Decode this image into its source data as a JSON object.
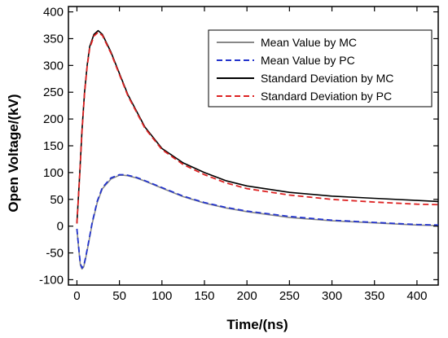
{
  "chart_data": {
    "type": "line",
    "title": "",
    "xlabel": "Time/(ns)",
    "ylabel": "Open Voltage/(kV)",
    "xlim": [
      -10,
      425
    ],
    "ylim": [
      -110,
      410
    ],
    "xticks": [
      0,
      50,
      100,
      150,
      200,
      250,
      300,
      350,
      400
    ],
    "yticks": [
      -100,
      -50,
      0,
      50,
      100,
      150,
      200,
      250,
      300,
      350,
      400
    ],
    "grid": false,
    "legend_position": "top-right",
    "series": [
      {
        "name": "Mean Value by MC",
        "color": "#888888",
        "dash": "solid",
        "x": [
          0,
          2,
          4,
          6,
          8,
          10,
          14,
          18,
          24,
          30,
          40,
          50,
          55,
          60,
          70,
          80,
          100,
          125,
          150,
          175,
          200,
          250,
          300,
          350,
          400,
          425
        ],
        "y": [
          -5,
          -40,
          -72,
          -80,
          -76,
          -62,
          -30,
          5,
          45,
          70,
          88,
          95,
          95,
          94,
          90,
          84,
          71,
          55,
          43,
          34,
          27,
          16,
          10,
          6,
          2,
          1
        ]
      },
      {
        "name": "Mean Value by PC",
        "color": "#2233cc",
        "dash": "dashed",
        "x": [
          0,
          2,
          4,
          6,
          8,
          10,
          14,
          18,
          24,
          30,
          40,
          50,
          55,
          60,
          70,
          80,
          100,
          125,
          150,
          175,
          200,
          250,
          300,
          350,
          400,
          425
        ],
        "y": [
          -5,
          -38,
          -70,
          -78,
          -74,
          -60,
          -28,
          7,
          47,
          72,
          90,
          96,
          96,
          95,
          91,
          85,
          72,
          56,
          44,
          35,
          28,
          18,
          11,
          7,
          3,
          2
        ]
      },
      {
        "name": "Standard Deviation by MC",
        "color": "#000000",
        "dash": "solid",
        "x": [
          0,
          3,
          6,
          9,
          12,
          15,
          20,
          25,
          30,
          40,
          50,
          60,
          80,
          100,
          125,
          150,
          175,
          200,
          250,
          300,
          350,
          400,
          425
        ],
        "y": [
          5,
          90,
          180,
          250,
          300,
          335,
          358,
          365,
          358,
          325,
          285,
          245,
          185,
          145,
          118,
          100,
          85,
          75,
          63,
          56,
          52,
          48,
          46
        ]
      },
      {
        "name": "Standard Deviation by PC",
        "color": "#dd2222",
        "dash": "dashed",
        "x": [
          0,
          3,
          6,
          9,
          12,
          15,
          20,
          25,
          30,
          40,
          50,
          60,
          80,
          100,
          125,
          150,
          175,
          200,
          250,
          300,
          350,
          400,
          425
        ],
        "y": [
          5,
          88,
          178,
          248,
          298,
          332,
          355,
          362,
          356,
          323,
          283,
          243,
          183,
          143,
          115,
          96,
          81,
          70,
          58,
          50,
          45,
          41,
          40
        ]
      }
    ]
  }
}
